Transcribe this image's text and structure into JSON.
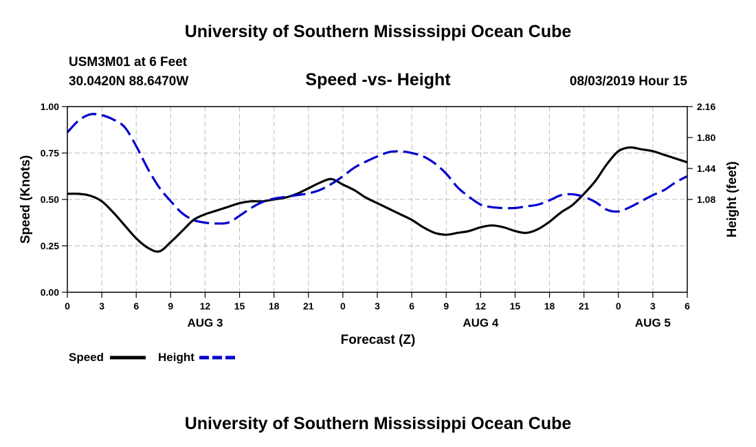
{
  "header": {
    "org_title": "University of Southern Mississippi Ocean Cube",
    "station": "USM3M01 at 6 Feet",
    "coords": "30.0420N 88.6470W",
    "chart_title": "Speed -vs- Height",
    "datetime": "08/03/2019 Hour 15"
  },
  "footer": {
    "org_title": "University of Southern Mississippi Ocean Cube"
  },
  "colors": {
    "speed": "#000000",
    "height": "#0000cc",
    "grid": "#bbbbbb",
    "axis": "#000000"
  },
  "chart_data": {
    "type": "line",
    "title": "Speed -vs- Height",
    "xlabel": "Forecast (Z)",
    "ylabel": "Speed (Knots)",
    "y2label": "Height (feet)",
    "x_range_hours": [
      0,
      54
    ],
    "x_tick_hours": [
      0,
      3,
      6,
      9,
      12,
      15,
      18,
      21,
      24,
      27,
      30,
      33,
      36,
      39,
      42,
      45,
      48,
      51,
      54
    ],
    "x_tick_labels": [
      "0",
      "3",
      "6",
      "9",
      "12",
      "15",
      "18",
      "21",
      "0",
      "3",
      "6",
      "9",
      "12",
      "15",
      "18",
      "21",
      "0",
      "3",
      "6"
    ],
    "date_labels": [
      {
        "label": "AUG 3",
        "hour": 12
      },
      {
        "label": "AUG 4",
        "hour": 36
      },
      {
        "label": "AUG 5",
        "hour": 51
      }
    ],
    "ylim": [
      0,
      1
    ],
    "y_ticks": [
      0,
      0.25,
      0.5,
      0.75,
      1
    ],
    "y_tick_labels": [
      "0.00",
      "0.25",
      "0.50",
      "0.75",
      "1.00"
    ],
    "y2lim": [
      0,
      2.16
    ],
    "y2_ticks": [
      1.08,
      1.44,
      1.8,
      2.16
    ],
    "y2_tick_labels": [
      "1.08",
      "1.44",
      "1.80",
      "2.16"
    ],
    "legend": {
      "speed_label": "Speed",
      "height_label": "Height"
    },
    "series": [
      {
        "name": "Speed",
        "axis": "left",
        "style": "solid",
        "x": [
          0,
          1,
          2,
          3,
          4,
          5,
          6,
          7,
          8,
          9,
          10,
          11,
          12,
          13,
          14,
          15,
          16,
          17,
          18,
          19,
          20,
          21,
          22,
          23,
          24,
          25,
          26,
          27,
          28,
          29,
          30,
          31,
          32,
          33,
          34,
          35,
          36,
          37,
          38,
          39,
          40,
          41,
          42,
          43,
          44,
          45,
          46,
          47,
          48,
          49,
          50,
          51,
          52,
          53,
          54
        ],
        "values": [
          0.53,
          0.53,
          0.52,
          0.49,
          0.43,
          0.36,
          0.29,
          0.24,
          0.22,
          0.27,
          0.33,
          0.39,
          0.42,
          0.44,
          0.46,
          0.48,
          0.49,
          0.49,
          0.5,
          0.51,
          0.53,
          0.56,
          0.59,
          0.61,
          0.58,
          0.55,
          0.51,
          0.48,
          0.45,
          0.42,
          0.39,
          0.35,
          0.32,
          0.31,
          0.32,
          0.33,
          0.35,
          0.36,
          0.35,
          0.33,
          0.32,
          0.34,
          0.38,
          0.43,
          0.47,
          0.53,
          0.6,
          0.69,
          0.76,
          0.78,
          0.77,
          0.76,
          0.74,
          0.72,
          0.7
        ]
      },
      {
        "name": "Height",
        "axis": "right",
        "style": "dashed",
        "x": [
          0,
          1,
          2,
          3,
          4,
          5,
          6,
          7,
          8,
          9,
          10,
          11,
          12,
          13,
          14,
          15,
          16,
          17,
          18,
          19,
          20,
          21,
          22,
          23,
          24,
          25,
          26,
          27,
          28,
          29,
          30,
          31,
          32,
          33,
          34,
          35,
          36,
          37,
          38,
          39,
          40,
          41,
          42,
          43,
          44,
          45,
          46,
          47,
          48,
          49,
          50,
          51,
          52,
          53,
          54
        ],
        "values": [
          1.86,
          2.0,
          2.07,
          2.06,
          2.01,
          1.92,
          1.7,
          1.44,
          1.22,
          1.06,
          0.92,
          0.84,
          0.81,
          0.8,
          0.81,
          0.89,
          0.98,
          1.05,
          1.09,
          1.11,
          1.13,
          1.15,
          1.19,
          1.26,
          1.35,
          1.45,
          1.52,
          1.58,
          1.63,
          1.64,
          1.62,
          1.58,
          1.5,
          1.38,
          1.22,
          1.11,
          1.02,
          0.99,
          0.98,
          0.98,
          1.0,
          1.02,
          1.07,
          1.13,
          1.14,
          1.11,
          1.05,
          0.96,
          0.94,
          0.99,
          1.06,
          1.13,
          1.19,
          1.28,
          1.35
        ]
      }
    ]
  }
}
